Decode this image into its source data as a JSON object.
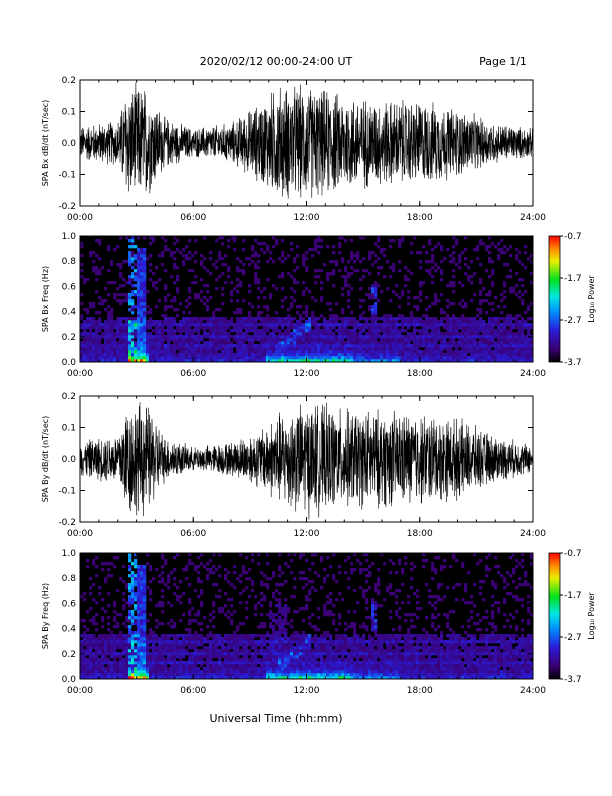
{
  "header": {
    "title": "2020/02/12  00:00-24:00 UT",
    "page": "Page 1/1"
  },
  "footer": {
    "xlabel": "Universal Time (hh:mm)"
  },
  "colors": {
    "trace": "#000000",
    "spectrogram_bg": "#000000"
  },
  "chart_data": [
    {
      "id": "bx_waveform",
      "type": "line",
      "ylabel": "SPA Bx dB/dt (nT/sec)",
      "xlim": [
        "00:00",
        "24:00"
      ],
      "x_ticks": [
        "00:00",
        "06:00",
        "12:00",
        "18:00",
        "24:00"
      ],
      "ylim": [
        -0.2,
        0.2
      ],
      "y_ticks": [
        "-0.2",
        "-0.1",
        "0.0",
        "0.1",
        "0.2"
      ],
      "x": [
        "00:00",
        "02:00",
        "02:30",
        "03:30",
        "04:30",
        "06:00",
        "08:00",
        "09:30",
        "10:30",
        "12:00",
        "14:00",
        "16:00",
        "18:00",
        "20:00",
        "22:00",
        "24:00"
      ],
      "envelope": [
        0.06,
        0.08,
        0.2,
        0.2,
        0.09,
        0.05,
        0.07,
        0.14,
        0.2,
        0.2,
        0.17,
        0.15,
        0.15,
        0.12,
        0.07,
        0.05
      ]
    },
    {
      "id": "bx_spectrogram",
      "type": "heatmap",
      "ylabel": "SPA Bx Freq (Hz)",
      "xlim": [
        "00:00",
        "24:00"
      ],
      "x_ticks": [
        "00:00",
        "06:00",
        "12:00",
        "18:00",
        "24:00"
      ],
      "ylim": [
        0.0,
        1.0
      ],
      "y_ticks": [
        "0.0",
        "0.2",
        "0.4",
        "0.6",
        "0.8",
        "1.0"
      ],
      "colorbar": {
        "label": "Log₁₀ Power",
        "range": [
          -3.7,
          -0.7
        ],
        "ticks": [
          "-0.7",
          "-1.7",
          "-2.7",
          "-3.7"
        ]
      }
    },
    {
      "id": "by_waveform",
      "type": "line",
      "ylabel": "SPA By dB/dt (nT/sec)",
      "xlim": [
        "00:00",
        "24:00"
      ],
      "x_ticks": [
        "00:00",
        "06:00",
        "12:00",
        "18:00",
        "24:00"
      ],
      "ylim": [
        -0.2,
        0.2
      ],
      "y_ticks": [
        "-0.2",
        "-0.1",
        "0.0",
        "0.1",
        "0.2"
      ],
      "x": [
        "00:00",
        "02:00",
        "02:30",
        "03:30",
        "04:30",
        "06:00",
        "08:00",
        "09:30",
        "10:30",
        "12:00",
        "14:00",
        "16:00",
        "18:00",
        "20:00",
        "22:00",
        "24:00"
      ],
      "envelope": [
        0.06,
        0.09,
        0.2,
        0.2,
        0.08,
        0.04,
        0.06,
        0.1,
        0.16,
        0.2,
        0.17,
        0.17,
        0.16,
        0.14,
        0.08,
        0.05
      ]
    },
    {
      "id": "by_spectrogram",
      "type": "heatmap",
      "ylabel": "SPA By Freq (Hz)",
      "xlim": [
        "00:00",
        "24:00"
      ],
      "x_ticks": [
        "00:00",
        "06:00",
        "12:00",
        "18:00",
        "24:00"
      ],
      "ylim": [
        0.0,
        1.0
      ],
      "y_ticks": [
        "0.0",
        "0.2",
        "0.4",
        "0.6",
        "0.8",
        "1.0"
      ],
      "colorbar": {
        "label": "Log₁₀ Power",
        "range": [
          -3.7,
          -0.7
        ],
        "ticks": [
          "-0.7",
          "-1.7",
          "-2.7",
          "-3.7"
        ]
      }
    }
  ]
}
